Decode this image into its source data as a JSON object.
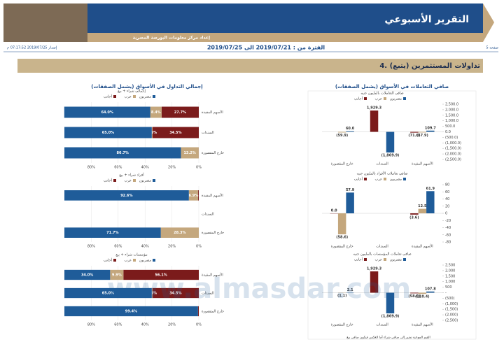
{
  "header": {
    "title": "التقرير الأسبوعي",
    "subtitle": "إعداد مركز معلومات البورصة المصرية",
    "page": "صفحة 5",
    "period": "الفترة من : 2019/07/21 الى 2019/07/25",
    "release": "إصدار 2019/07/25 07:17:52 م"
  },
  "section": {
    "title": "4. تداولات المستثمرين (يتبع)",
    "left_title": "إجمالي التداول في الأسواق (يشمل الصفقات)",
    "right_title": "صافي التعاملات في الأسواق (يشمل الصفقات)",
    "footnote": "القيم الموجبة تشير إلى صافي شراء أما العكس فيكون صافي بيع"
  },
  "watermark": "www.almasdar.com",
  "chart_data": [
    {
      "type": "hbar",
      "title": "إجمالي شراء + بيع",
      "categories": [
        "الأسهم المقيدة",
        "السندات",
        "خارج المقصورة"
      ],
      "series": [
        {
          "name": "مصريون",
          "color": "#1f5c99",
          "values": [
            64.0,
            65.0,
            86.7
          ],
          "value_labels": [
            "64.0%",
            "65.0%",
            "86.7%"
          ]
        },
        {
          "name": "عرب",
          "color": "#c4a77d",
          "values": [
            8.4,
            0.5,
            13.2
          ],
          "value_labels": [
            "8.4%",
            "0.5%",
            "13.2%"
          ]
        },
        {
          "name": "أجانب",
          "color": "#7b1b1b",
          "values": [
            27.7,
            34.5,
            0.1
          ],
          "value_labels": [
            "27.7%",
            "34.5%",
            null
          ]
        }
      ],
      "xlim": [
        0,
        100
      ],
      "xticks": [
        {
          "value": 0,
          "label": "0%"
        },
        {
          "value": 20,
          "label": "20%"
        },
        {
          "value": 40,
          "label": "40%"
        },
        {
          "value": 60,
          "label": "60%"
        },
        {
          "value": 80,
          "label": "80%"
        }
      ]
    },
    {
      "type": "hbar",
      "title": "أفراد شراء + بيع",
      "categories": [
        "الأسهم المقيدة",
        "السندات",
        "خارج المقصورة"
      ],
      "series": [
        {
          "name": "مصريون",
          "color": "#1f5c99",
          "values": [
            92.6,
            null,
            71.7
          ],
          "value_labels": [
            "92.6%",
            null,
            "71.7%"
          ]
        },
        {
          "name": "عرب",
          "color": "#c4a77d",
          "values": [
            6.9,
            null,
            28.3
          ],
          "value_labels": [
            "6.9%",
            null,
            "28.3%"
          ]
        },
        {
          "name": "أجانب",
          "color": "#7b1b1b",
          "values": [
            0.5,
            null,
            0.0
          ],
          "value_labels": [
            null,
            null,
            null
          ]
        }
      ],
      "xlim": [
        0,
        100
      ],
      "xticks": [
        {
          "value": 0,
          "label": "0%"
        },
        {
          "value": 20,
          "label": "20%"
        },
        {
          "value": 40,
          "label": "40%"
        },
        {
          "value": 60,
          "label": "60%"
        },
        {
          "value": 80,
          "label": "80%"
        }
      ]
    },
    {
      "type": "hbar",
      "title": "مؤسسات شراء + بيع",
      "categories": [
        "الأسهم المقيدة",
        "السندات",
        "خارج المقصورة"
      ],
      "series": [
        {
          "name": "مصريون",
          "color": "#1f5c99",
          "values": [
            34.0,
            65.0,
            99.4
          ],
          "value_labels": [
            "34.0%",
            "65.0%",
            "99.4%"
          ]
        },
        {
          "name": "عرب",
          "color": "#c4a77d",
          "values": [
            9.9,
            0.5,
            0.0
          ],
          "value_labels": [
            "9.9%",
            "0.5%",
            null
          ]
        },
        {
          "name": "أجانب",
          "color": "#7b1b1b",
          "values": [
            56.1,
            34.5,
            0.6
          ],
          "value_labels": [
            "56.1%",
            "34.5%",
            null
          ]
        }
      ],
      "xlim": [
        0,
        100
      ],
      "xticks": [
        {
          "value": 0,
          "label": "0%"
        },
        {
          "value": 20,
          "label": "20%"
        },
        {
          "value": 40,
          "label": "40%"
        },
        {
          "value": 60,
          "label": "60%"
        },
        {
          "value": 80,
          "label": "80%"
        }
      ]
    },
    {
      "type": "bar",
      "title": "صافي التعاملات بالمليون جنيه",
      "categories": [
        "الأسهم المقيدة",
        "السندات",
        "خارج المقصورة"
      ],
      "series": [
        {
          "name": "مصريون",
          "color": "#1f5c99",
          "values": [
            109.7,
            -1869.9,
            60.0
          ],
          "value_labels": [
            "109.7",
            "(1,869.9)",
            "60.0"
          ]
        },
        {
          "name": "عرب",
          "color": "#c4a77d",
          "values": [
            -57.9,
            null,
            -59.9
          ],
          "value_labels": [
            "(57.9)",
            null,
            "(59.9)"
          ]
        },
        {
          "name": "أجانب",
          "color": "#7b1b1b",
          "values": [
            -71.6,
            1929.3,
            null
          ],
          "value_labels": [
            "(71.6)",
            "1,929.3",
            null
          ]
        }
      ],
      "ylim": [
        -2500,
        2500
      ],
      "yticks": [
        {
          "value": -2500,
          "label": "(2,500.0)"
        },
        {
          "value": -2000,
          "label": "(2,000.0)"
        },
        {
          "value": -1500,
          "label": "(1,500.0)"
        },
        {
          "value": -1000,
          "label": "(1,000.0)"
        },
        {
          "value": -500,
          "label": "(500.0)"
        },
        {
          "value": 0,
          "label": "0.0"
        },
        {
          "value": 500,
          "label": "500.0"
        },
        {
          "value": 1000,
          "label": "1,000.0"
        },
        {
          "value": 1500,
          "label": "1,500.0"
        },
        {
          "value": 2000,
          "label": "2,000.0"
        },
        {
          "value": 2500,
          "label": "2,500.0"
        }
      ]
    },
    {
      "type": "bar",
      "title": "صافي تعاملات الأفراد بالمليون جنيه",
      "categories": [
        "الأسهم المقيدة",
        "السندات",
        "خارج المقصورة"
      ],
      "series": [
        {
          "name": "مصريون",
          "color": "#1f5c99",
          "values": [
            61.9,
            null,
            57.9
          ],
          "value_labels": [
            "61.9",
            null,
            "57.9"
          ]
        },
        {
          "name": "عرب",
          "color": "#c4a77d",
          "values": [
            12.5,
            null,
            -58.6
          ],
          "value_labels": [
            "12.5",
            null,
            "(58.6)"
          ]
        },
        {
          "name": "أجانب",
          "color": "#7b1b1b",
          "values": [
            -3.6,
            null,
            0.0
          ],
          "value_labels": [
            "(3.6)",
            null,
            "0.0"
          ]
        }
      ],
      "ylim": [
        -80,
        80
      ],
      "yticks": [
        -80,
        -60,
        -40,
        -20,
        0,
        20,
        40,
        60,
        80
      ]
    },
    {
      "type": "bar",
      "title": "صافي تعاملات المؤسسات بالمليون جنيه",
      "categories": [
        "الأسهم المقيدة",
        "السندات",
        "خارج المقصورة"
      ],
      "series": [
        {
          "name": "مصريون",
          "color": "#1f5c99",
          "values": [
            107.8,
            -1869.9,
            2.1
          ],
          "value_labels": [
            "107.8",
            "(1,869.9)",
            "2.1"
          ]
        },
        {
          "name": "عرب",
          "color": "#c4a77d",
          "values": [
            -110.4,
            null,
            -1.1
          ],
          "value_labels": [
            "(110.4)",
            null,
            "(1.1)"
          ]
        },
        {
          "name": "أجانب",
          "color": "#7b1b1b",
          "values": [
            -58.0,
            1929.3,
            null
          ],
          "value_labels": [
            "(58.0)",
            "1,929.3",
            null
          ]
        }
      ],
      "ylim": [
        -2500,
        2500
      ],
      "yticks": [
        {
          "value": -2500,
          "label": "(2,500)"
        },
        {
          "value": -2000,
          "label": "(2,000)"
        },
        {
          "value": -1500,
          "label": "(1,500)"
        },
        {
          "value": -1000,
          "label": "(1,000)"
        },
        {
          "value": -500,
          "label": "(500)"
        },
        {
          "value": 0,
          "label": "-"
        },
        {
          "value": 500,
          "label": "500"
        },
        {
          "value": 1000,
          "label": "1,000"
        },
        {
          "value": 1500,
          "label": "1,500"
        },
        {
          "value": 2000,
          "label": "2,000"
        },
        {
          "value": 2500,
          "label": "2,500"
        }
      ]
    }
  ]
}
